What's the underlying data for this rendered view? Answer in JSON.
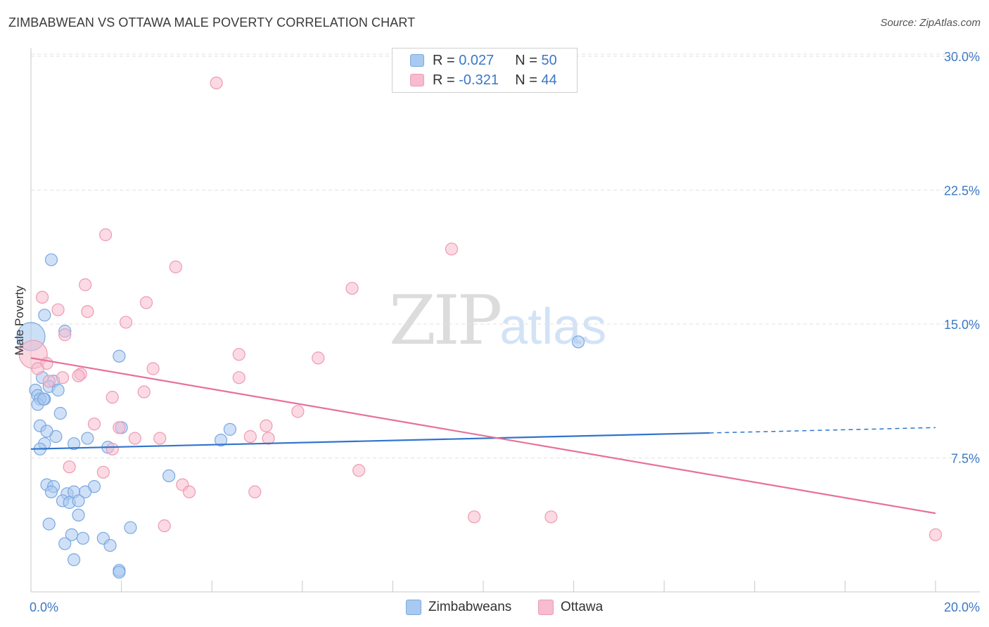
{
  "header": {
    "title": "ZIMBABWEAN VS OTTAWA MALE POVERTY CORRELATION CHART",
    "source": "Source: ZipAtlas.com"
  },
  "legend": {
    "r_label": "R =",
    "n_label": "N =",
    "rows": [
      {
        "r": "0.027",
        "n": "50"
      },
      {
        "r": "-0.321",
        "n": "44"
      }
    ]
  },
  "watermark": {
    "zip": "ZIP",
    "atlas": "atlas"
  },
  "bottom_legend": [
    "Zimbabweans",
    "Ottawa"
  ],
  "colors": {
    "blue_fill": "#a9c9f0",
    "blue_stroke": "#7aa8e0",
    "blue_line": "#2f74cc",
    "pink_fill": "#f7bccd",
    "pink_stroke": "#ee9ab4",
    "pink_line": "#e8709a",
    "axis_label": "#3b78c6",
    "grid": "#e2e2e2"
  },
  "chart_data": {
    "type": "scatter",
    "title": "ZIMBABWEAN VS OTTAWA MALE POVERTY CORRELATION CHART",
    "xlabel": "",
    "ylabel": "Male Poverty",
    "xlim": [
      0,
      20
    ],
    "ylim": [
      0,
      31
    ],
    "x_tick_labels": [
      {
        "value": 0,
        "label": "0.0%"
      },
      {
        "value": 20,
        "label": "20.0%"
      }
    ],
    "x_minor_ticks": [
      0,
      2,
      4,
      6,
      8,
      10,
      12,
      14,
      16,
      18,
      20
    ],
    "y_ticks": [
      {
        "value": 7.5,
        "label": "7.5%"
      },
      {
        "value": 15,
        "label": "15.0%"
      },
      {
        "value": 22.5,
        "label": "22.5%"
      },
      {
        "value": 30,
        "label": "30.0%"
      }
    ],
    "series": [
      {
        "name": "Zimbabweans",
        "color": "#a9c9f0",
        "trend": {
          "x0": 0,
          "y0": 8.0,
          "x1": 15.0,
          "y1": 8.9,
          "dash_to_x": 20,
          "dash_to_y": 9.2
        },
        "points": [
          [
            0.0,
            14.3,
            "large"
          ],
          [
            0.45,
            18.6
          ],
          [
            0.3,
            15.5
          ],
          [
            0.75,
            14.6
          ],
          [
            1.95,
            13.2
          ],
          [
            0.1,
            11.3
          ],
          [
            0.15,
            11.0
          ],
          [
            0.25,
            12.0
          ],
          [
            0.5,
            11.8
          ],
          [
            0.4,
            11.5
          ],
          [
            0.6,
            11.3
          ],
          [
            0.3,
            10.8
          ],
          [
            0.2,
            10.8
          ],
          [
            0.15,
            10.5
          ],
          [
            0.28,
            10.8
          ],
          [
            0.2,
            9.3
          ],
          [
            2.0,
            9.2
          ],
          [
            4.4,
            9.1
          ],
          [
            0.55,
            8.7
          ],
          [
            0.3,
            8.3
          ],
          [
            0.2,
            8.0
          ],
          [
            0.95,
            8.3
          ],
          [
            1.7,
            8.1
          ],
          [
            4.2,
            8.5
          ],
          [
            12.1,
            14.0
          ],
          [
            3.05,
            6.5
          ],
          [
            0.35,
            6.0
          ],
          [
            0.5,
            5.9
          ],
          [
            0.45,
            5.6
          ],
          [
            0.8,
            5.5
          ],
          [
            1.4,
            5.9
          ],
          [
            0.95,
            5.6
          ],
          [
            1.2,
            5.6
          ],
          [
            0.7,
            5.1
          ],
          [
            0.85,
            5.0
          ],
          [
            1.05,
            5.1
          ],
          [
            1.05,
            4.3
          ],
          [
            0.4,
            3.8
          ],
          [
            2.2,
            3.6
          ],
          [
            0.9,
            3.2
          ],
          [
            1.15,
            3.0
          ],
          [
            1.6,
            3.0
          ],
          [
            0.75,
            2.7
          ],
          [
            1.75,
            2.6
          ],
          [
            0.95,
            1.8
          ],
          [
            1.95,
            1.2
          ],
          [
            1.95,
            1.1
          ],
          [
            0.65,
            10.0
          ],
          [
            0.35,
            9.0
          ],
          [
            1.25,
            8.6
          ]
        ]
      },
      {
        "name": "Ottawa",
        "color": "#f7bccd",
        "trend": {
          "x0": 0,
          "y0": 13.1,
          "x1": 20,
          "y1": 4.4
        },
        "points": [
          [
            4.1,
            28.5
          ],
          [
            1.65,
            20.0
          ],
          [
            9.3,
            19.2
          ],
          [
            3.2,
            18.2
          ],
          [
            1.2,
            17.2
          ],
          [
            7.1,
            17.0
          ],
          [
            0.25,
            16.5
          ],
          [
            0.6,
            15.8
          ],
          [
            1.25,
            15.7
          ],
          [
            2.55,
            16.2
          ],
          [
            2.1,
            15.1
          ],
          [
            0.75,
            14.4
          ],
          [
            0.05,
            13.3,
            "large"
          ],
          [
            0.35,
            12.8
          ],
          [
            4.6,
            13.3
          ],
          [
            6.35,
            13.1
          ],
          [
            0.15,
            12.5
          ],
          [
            2.7,
            12.5
          ],
          [
            1.1,
            12.2
          ],
          [
            1.05,
            12.1
          ],
          [
            0.7,
            12.0
          ],
          [
            0.4,
            11.8
          ],
          [
            4.6,
            12.0
          ],
          [
            2.5,
            11.2
          ],
          [
            1.8,
            10.9
          ],
          [
            5.9,
            10.1
          ],
          [
            1.4,
            9.4
          ],
          [
            1.95,
            9.2
          ],
          [
            5.2,
            9.3
          ],
          [
            2.85,
            8.6
          ],
          [
            2.3,
            8.6
          ],
          [
            4.85,
            8.7
          ],
          [
            5.25,
            8.6
          ],
          [
            1.8,
            8.0
          ],
          [
            0.85,
            7.0
          ],
          [
            1.6,
            6.7
          ],
          [
            7.25,
            6.8
          ],
          [
            3.35,
            6.0
          ],
          [
            3.5,
            5.6
          ],
          [
            4.95,
            5.6
          ],
          [
            9.8,
            4.2
          ],
          [
            11.5,
            4.2
          ],
          [
            2.95,
            3.7
          ],
          [
            20.0,
            3.2
          ]
        ]
      }
    ]
  }
}
